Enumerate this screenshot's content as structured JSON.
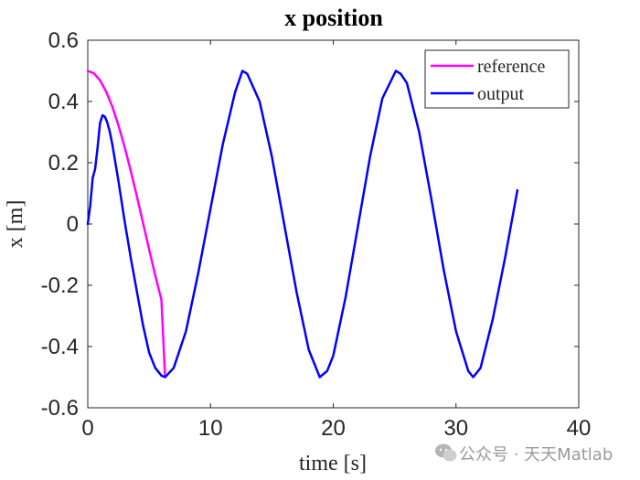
{
  "chart_data": {
    "type": "line",
    "title": "x position",
    "xlabel": "time [s]",
    "ylabel": "x [m]",
    "xlim": [
      0,
      40
    ],
    "ylim": [
      -0.6,
      0.6
    ],
    "xticks": [
      0,
      10,
      20,
      30,
      40
    ],
    "xtick_labels": [
      "0",
      "10",
      "20",
      "30",
      "40"
    ],
    "yticks": [
      0.6,
      0.4,
      0.2,
      0,
      -0.2,
      -0.4,
      -0.6
    ],
    "ytick_labels": [
      "0.6",
      "0.4",
      "0.2",
      "0",
      "-0.2",
      "-0.4",
      "-0.6"
    ],
    "grid": false,
    "legend_position": "top-right",
    "series": [
      {
        "name": "reference",
        "color": "#ff00ff",
        "x": [
          0,
          0.5,
          1,
          1.5,
          2,
          2.5,
          3,
          3.5,
          4,
          4.5,
          5,
          5.5,
          6,
          6.3
        ],
        "y": [
          0.5,
          0.492,
          0.469,
          0.432,
          0.383,
          0.322,
          0.252,
          0.174,
          0.091,
          0.004,
          -0.083,
          -0.168,
          -0.247,
          -0.5
        ]
      },
      {
        "name": "output",
        "color": "#0000ff",
        "x": [
          0,
          0.2,
          0.4,
          0.6,
          0.8,
          1.0,
          1.2,
          1.4,
          1.6,
          1.8,
          2.0,
          2.5,
          3.0,
          3.5,
          4.0,
          4.5,
          5.0,
          5.5,
          6.0,
          6.3,
          7.0,
          8.0,
          9.0,
          10.0,
          11.0,
          12.0,
          12.6,
          13.0,
          14.0,
          15.0,
          16.0,
          17.0,
          18.0,
          18.9,
          19.5,
          20.0,
          21.0,
          22.0,
          23.0,
          24.0,
          25.1,
          25.5,
          26.0,
          27.0,
          28.0,
          29.0,
          30.0,
          31.0,
          31.4,
          32.0,
          33.0,
          34.0,
          35.0
        ],
        "y": [
          0.0,
          0.06,
          0.15,
          0.18,
          0.25,
          0.33,
          0.355,
          0.35,
          0.33,
          0.3,
          0.26,
          0.14,
          0.01,
          -0.11,
          -0.22,
          -0.33,
          -0.42,
          -0.47,
          -0.495,
          -0.5,
          -0.47,
          -0.35,
          -0.16,
          0.05,
          0.26,
          0.43,
          0.5,
          0.49,
          0.4,
          0.22,
          0.0,
          -0.22,
          -0.41,
          -0.5,
          -0.48,
          -0.43,
          -0.24,
          -0.01,
          0.22,
          0.41,
          0.5,
          0.49,
          0.46,
          0.3,
          0.08,
          -0.15,
          -0.35,
          -0.48,
          -0.5,
          -0.47,
          -0.31,
          -0.11,
          0.11
        ]
      }
    ]
  },
  "watermark": "公众号 · 天天Matlab",
  "watermark_icon": "wechat-icon"
}
